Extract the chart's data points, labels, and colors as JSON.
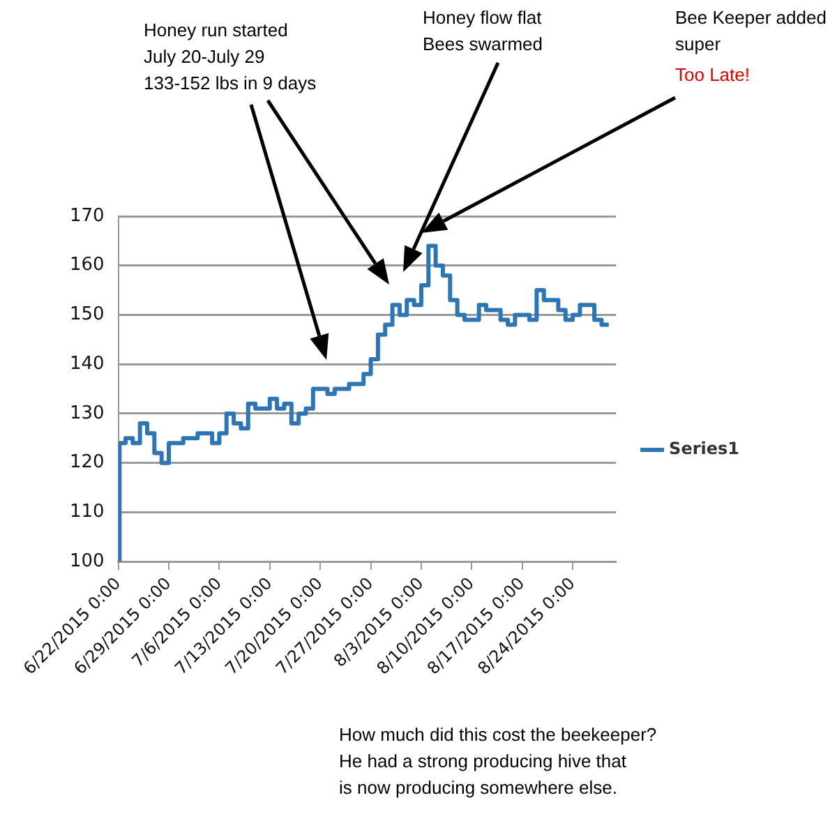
{
  "chart_data": {
    "type": "step",
    "annotations": [
      "Honey run started\nJuly 20-July 29\n133-152 lbs in 9 days",
      "Honey flow flat\nBees swarmed",
      "Bee Keeper added\nsuper",
      "Too Late!",
      "How much did this cost the beekeeper?\nHe had a strong producing hive that\nis now producing somewhere else."
    ],
    "x": [
      "2015-06-22",
      "2015-06-22T04:00",
      "2015-06-23",
      "2015-06-24",
      "2015-06-25",
      "2015-06-26",
      "2015-06-27",
      "2015-06-28",
      "2015-06-29",
      "2015-07-01",
      "2015-07-03",
      "2015-07-05",
      "2015-07-06",
      "2015-07-07",
      "2015-07-08",
      "2015-07-09",
      "2015-07-10",
      "2015-07-11",
      "2015-07-13",
      "2015-07-14",
      "2015-07-15",
      "2015-07-16",
      "2015-07-17",
      "2015-07-18",
      "2015-07-19",
      "2015-07-21",
      "2015-07-22",
      "2015-07-24",
      "2015-07-26",
      "2015-07-27",
      "2015-07-28",
      "2015-07-29",
      "2015-07-30",
      "2015-07-31",
      "2015-08-01",
      "2015-08-02",
      "2015-08-03",
      "2015-08-04",
      "2015-08-05",
      "2015-08-06",
      "2015-08-07",
      "2015-08-08",
      "2015-08-09",
      "2015-08-11",
      "2015-08-12",
      "2015-08-14",
      "2015-08-15",
      "2015-08-16",
      "2015-08-18",
      "2015-08-19",
      "2015-08-20",
      "2015-08-22",
      "2015-08-23",
      "2015-08-24",
      "2015-08-25",
      "2015-08-27",
      "2015-08-28",
      "2015-08-29"
    ],
    "series": [
      {
        "name": "Series1",
        "color": "#2e75b6",
        "values": [
          100,
          124,
          125,
          124,
          128,
          126,
          122,
          120,
          124,
          125,
          126,
          124,
          126,
          130,
          128,
          127,
          132,
          131,
          133,
          131,
          132,
          128,
          130,
          131,
          135,
          134,
          135,
          136,
          138,
          141,
          146,
          148,
          152,
          150,
          153,
          152,
          156,
          164,
          160,
          158,
          153,
          150,
          149,
          152,
          151,
          149,
          148,
          150,
          149,
          155,
          153,
          151,
          149,
          150,
          152,
          149,
          148,
          148
        ]
      }
    ],
    "xlim": [
      "2015-06-22",
      "2015-08-30"
    ],
    "xticks": [
      {
        "value": "2015-06-22",
        "label": "6/22/2015 0:00"
      },
      {
        "value": "2015-06-29",
        "label": "6/29/2015 0:00"
      },
      {
        "value": "2015-07-06",
        "label": "7/6/2015 0:00"
      },
      {
        "value": "2015-07-13",
        "label": "7/13/2015 0:00"
      },
      {
        "value": "2015-07-20",
        "label": "7/20/2015 0:00"
      },
      {
        "value": "2015-07-27",
        "label": "7/27/2015 0:00"
      },
      {
        "value": "2015-08-03",
        "label": "8/3/2015 0:00"
      },
      {
        "value": "2015-08-10",
        "label": "8/10/2015 0:00"
      },
      {
        "value": "2015-08-17",
        "label": "8/17/2015 0:00"
      },
      {
        "value": "2015-08-24",
        "label": "8/24/2015 0:00"
      }
    ],
    "ylim": [
      100,
      170
    ],
    "yticks": [
      100,
      110,
      120,
      130,
      140,
      150,
      160,
      170
    ],
    "grid": "y",
    "legend": "right",
    "marker": "none",
    "line_style": "solid"
  }
}
